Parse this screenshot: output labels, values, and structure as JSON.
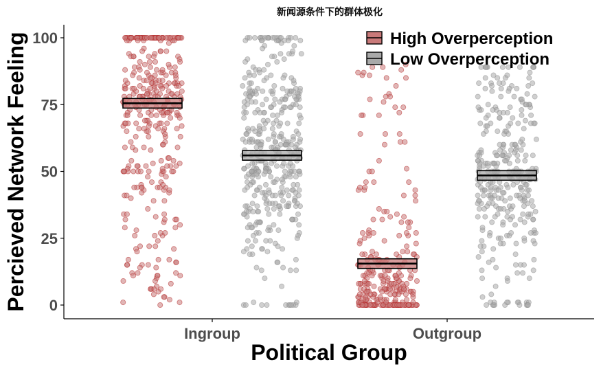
{
  "chart_data": {
    "type": "scatter",
    "title": "新闻源条件下的群体极化",
    "xlabel": "Political Group",
    "ylabel": "Percieved Network Feeling",
    "categories": [
      "Ingroup",
      "Outgroup"
    ],
    "ylim": [
      -5,
      105
    ],
    "yticks": [
      0,
      25,
      50,
      75,
      100
    ],
    "legend_position": "top-right",
    "series": [
      {
        "name": "High Overperception",
        "color": "#b22222",
        "fill": "#c97a7a",
        "means": [
          75.5,
          15.5
        ]
      },
      {
        "name": "Low Overperception",
        "color": "#8c8c8c",
        "fill": "#a9a9a9",
        "means": [
          56,
          48.5
        ]
      }
    ]
  }
}
